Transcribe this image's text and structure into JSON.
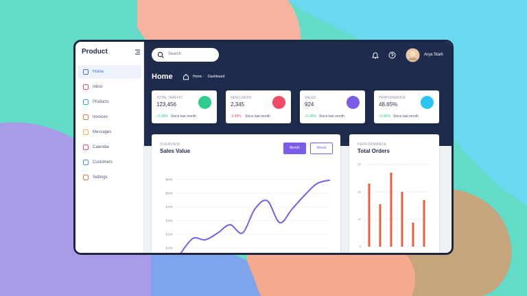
{
  "sidebar": {
    "brand": "Product",
    "nav": [
      {
        "label": "Home",
        "color": "#3d6ee8",
        "active": true
      },
      {
        "label": "Inbox",
        "color": "#ef4b64",
        "active": false
      },
      {
        "label": "Products",
        "color": "#1fb8c9",
        "active": false
      },
      {
        "label": "Invoices",
        "color": "#f07a3c",
        "active": false
      },
      {
        "label": "Messages",
        "color": "#f2b53a",
        "active": false
      },
      {
        "label": "Calendar",
        "color": "#ef4b64",
        "active": false
      },
      {
        "label": "Customers",
        "color": "#3d9ee8",
        "active": false
      },
      {
        "label": "Settings",
        "color": "#f07a3c",
        "active": false
      }
    ]
  },
  "header": {
    "search": "Search",
    "user": "Arya Stark",
    "title": "Home",
    "breadcrumb": [
      "Home",
      "Dashboard"
    ]
  },
  "stats": [
    {
      "title": "TOTAL TRAFFIC",
      "value": "123,456",
      "change": "+3.48%",
      "note": "Since last month",
      "color": "#2ecc8f",
      "positive": true
    },
    {
      "title": "NEW USERS",
      "value": "2,345",
      "change": "-3.48%",
      "note": "Since last month",
      "color": "#ef4b64",
      "positive": false
    },
    {
      "title": "SALES",
      "value": "924",
      "change": "+3.48%",
      "note": "Since last month",
      "color": "#7b5ce8",
      "positive": true
    },
    {
      "title": "PERFORMANCE",
      "value": "48.65%",
      "change": "+3.46%",
      "note": "Since last month",
      "color": "#29c5f0",
      "positive": true
    }
  ],
  "sales_chart": {
    "type": "line",
    "overline": "OVERVIEW",
    "title": "Sales Value",
    "buttons": [
      "Month",
      "Week"
    ],
    "color": "#7b5ce8",
    "values": [
      6000,
      17000,
      16000,
      21000,
      27000,
      21000,
      38500,
      44500,
      28500,
      38500,
      48500,
      57000,
      59500
    ],
    "ylim": [
      0,
      60000
    ],
    "yticks": [
      {
        "value": 10000,
        "label": "$10K"
      },
      {
        "value": 20000,
        "label": "$20K"
      },
      {
        "value": 30000,
        "label": "$30K"
      },
      {
        "value": 40000,
        "label": "$40K"
      },
      {
        "value": 50000,
        "label": "$50K"
      },
      {
        "value": 60000,
        "label": "$60K"
      }
    ],
    "grid": true
  },
  "orders_chart": {
    "type": "bar",
    "overline": "PERFORMANCE",
    "title": "Total Orders",
    "color": "#e8603c",
    "values": [
      23,
      15.5,
      27,
      20,
      8.75,
      17
    ],
    "ylim": [
      0,
      30
    ],
    "yticks": [
      0,
      10,
      20,
      30
    ],
    "grid": true
  }
}
